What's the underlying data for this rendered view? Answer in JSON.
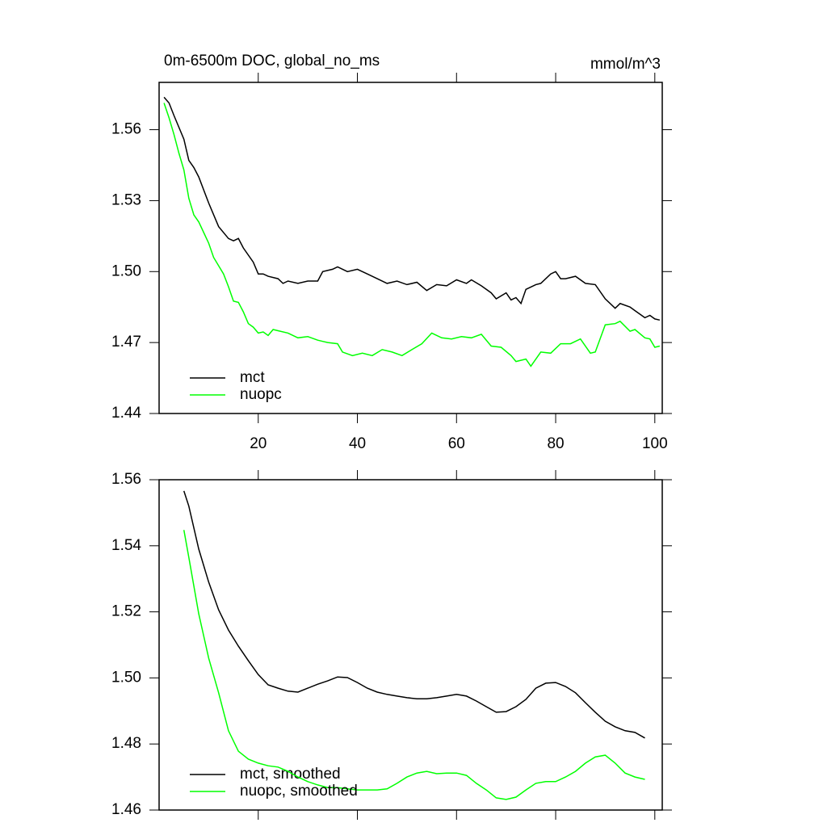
{
  "chart_data": [
    {
      "type": "line",
      "title": "0m-6500m DOC, global_no_ms",
      "units": "mmol/m^3",
      "xlim": [
        0,
        101.5
      ],
      "xticks": [
        20,
        40,
        60,
        80,
        100
      ],
      "ylim": [
        1.44,
        1.58
      ],
      "yticks": [
        1.44,
        1.47,
        {
          "value": 1.5,
          "label": "1.50"
        },
        1.53,
        1.56
      ],
      "legend": "lower left",
      "series": [
        {
          "name": "mct",
          "color": "#000000",
          "x": [
            1,
            2,
            3,
            5,
            6,
            7,
            8,
            10,
            12,
            14,
            15,
            16,
            17,
            19,
            20,
            21,
            22,
            24,
            25,
            26,
            28,
            30,
            32,
            33,
            35,
            36,
            38,
            40,
            42,
            44,
            46,
            48,
            50,
            52,
            54,
            56,
            58,
            60,
            62,
            63,
            65,
            67,
            68,
            70,
            71,
            72,
            73,
            74,
            76,
            77,
            79,
            80,
            81,
            82,
            84,
            86,
            88,
            90,
            92,
            93,
            95,
            96,
            98,
            99,
            100,
            101
          ],
          "values": [
            1.5737,
            1.5713,
            1.566,
            1.556,
            1.547,
            1.544,
            1.54,
            1.529,
            1.519,
            1.514,
            1.513,
            1.514,
            1.51,
            1.504,
            1.499,
            1.499,
            1.498,
            1.497,
            1.495,
            1.496,
            1.495,
            1.496,
            1.496,
            1.5,
            1.501,
            1.502,
            1.5,
            1.501,
            1.499,
            1.497,
            1.495,
            1.496,
            1.4945,
            1.4955,
            1.492,
            1.4945,
            1.494,
            1.4965,
            1.495,
            1.4965,
            1.494,
            1.491,
            1.4885,
            1.491,
            1.488,
            1.489,
            1.4865,
            1.4925,
            1.4945,
            1.495,
            1.499,
            1.5,
            1.497,
            1.497,
            1.498,
            1.495,
            1.4945,
            1.4885,
            1.4845,
            1.4865,
            1.485,
            1.4835,
            1.4805,
            1.4815,
            1.48,
            1.4795
          ]
        },
        {
          "name": "nuopc",
          "color": "#00ff00",
          "x": [
            1,
            2,
            3,
            4,
            5,
            6,
            7,
            8,
            10,
            11,
            13,
            14,
            15,
            16,
            17,
            18,
            19,
            20,
            21,
            22,
            23,
            24,
            26,
            28,
            30,
            32,
            33,
            34,
            36,
            37,
            39,
            41,
            43,
            45,
            47,
            49,
            51,
            53,
            55,
            57,
            59,
            61,
            63,
            65,
            67,
            69,
            71,
            72,
            74,
            75,
            77,
            79,
            81,
            83,
            85,
            87,
            88,
            90,
            92,
            93,
            95,
            96,
            98,
            99,
            100,
            101
          ],
          "values": [
            1.5713,
            1.565,
            1.558,
            1.55,
            1.543,
            1.531,
            1.524,
            1.521,
            1.512,
            1.506,
            1.499,
            1.4936,
            1.4875,
            1.487,
            1.483,
            1.478,
            1.4765,
            1.474,
            1.4745,
            1.473,
            1.4755,
            1.475,
            1.474,
            1.472,
            1.4725,
            1.471,
            1.4705,
            1.47,
            1.4695,
            1.466,
            1.4645,
            1.4655,
            1.4645,
            1.467,
            1.466,
            1.4645,
            1.467,
            1.4695,
            1.474,
            1.472,
            1.4715,
            1.4725,
            1.472,
            1.4735,
            1.4685,
            1.468,
            1.4645,
            1.462,
            1.463,
            1.46,
            1.466,
            1.4655,
            1.4695,
            1.4695,
            1.4715,
            1.4655,
            1.466,
            1.4775,
            1.478,
            1.479,
            1.4748,
            1.4755,
            1.472,
            1.4715,
            1.468,
            1.4685
          ]
        }
      ]
    },
    {
      "type": "line",
      "xlim": [
        0,
        101.5
      ],
      "ylim": [
        1.46,
        1.56
      ],
      "yticks": [
        {
          "value": 1.46,
          "label": "1.46"
        },
        1.48,
        {
          "value": 1.5,
          "label": "1.50"
        },
        1.52,
        1.54,
        1.56
      ],
      "legend": "lower left",
      "x": [
        5,
        6,
        8,
        10,
        12,
        14,
        16,
        18,
        20,
        22,
        24,
        26,
        28,
        30,
        32,
        34,
        36,
        38,
        40,
        42,
        44,
        46,
        48,
        50,
        52,
        54,
        56,
        58,
        60,
        62,
        64,
        66,
        68,
        70,
        72,
        74,
        76,
        78,
        80,
        82,
        84,
        86,
        88,
        90,
        92,
        94,
        96,
        98
      ],
      "series": [
        {
          "name": "mct, smoothed",
          "color": "#000000",
          "values": [
            1.5566,
            1.552,
            1.539,
            1.529,
            1.5206,
            1.5145,
            1.5096,
            1.5052,
            1.501,
            1.4979,
            1.4969,
            1.496,
            1.4957,
            1.4969,
            1.4981,
            1.4991,
            1.5003,
            1.5001,
            1.4986,
            1.4969,
            1.4957,
            1.495,
            1.4945,
            1.494,
            1.4937,
            1.4937,
            1.494,
            1.4945,
            1.495,
            1.4945,
            1.493,
            1.4913,
            1.4896,
            1.4898,
            1.4913,
            1.4935,
            1.4969,
            1.4984,
            1.4986,
            1.4974,
            1.4955,
            1.4925,
            1.4896,
            1.4869,
            1.4852,
            1.484,
            1.4835,
            1.4818
          ]
        },
        {
          "name": "nuopc, smoothed",
          "color": "#00ff00",
          "values": [
            1.5448,
            1.5365,
            1.5194,
            1.506,
            1.4955,
            1.484,
            1.4778,
            1.4754,
            1.4742,
            1.4734,
            1.473,
            1.4717,
            1.47,
            1.4686,
            1.4676,
            1.4668,
            1.4668,
            1.4664,
            1.4661,
            1.4661,
            1.4661,
            1.4664,
            1.4681,
            1.47,
            1.4712,
            1.4717,
            1.471,
            1.4712,
            1.4712,
            1.4705,
            1.4681,
            1.4661,
            1.4637,
            1.4632,
            1.4639,
            1.4661,
            1.4681,
            1.4686,
            1.4686,
            1.47,
            1.4717,
            1.4742,
            1.4761,
            1.4766,
            1.4742,
            1.4712,
            1.47,
            1.4693
          ]
        }
      ]
    }
  ]
}
